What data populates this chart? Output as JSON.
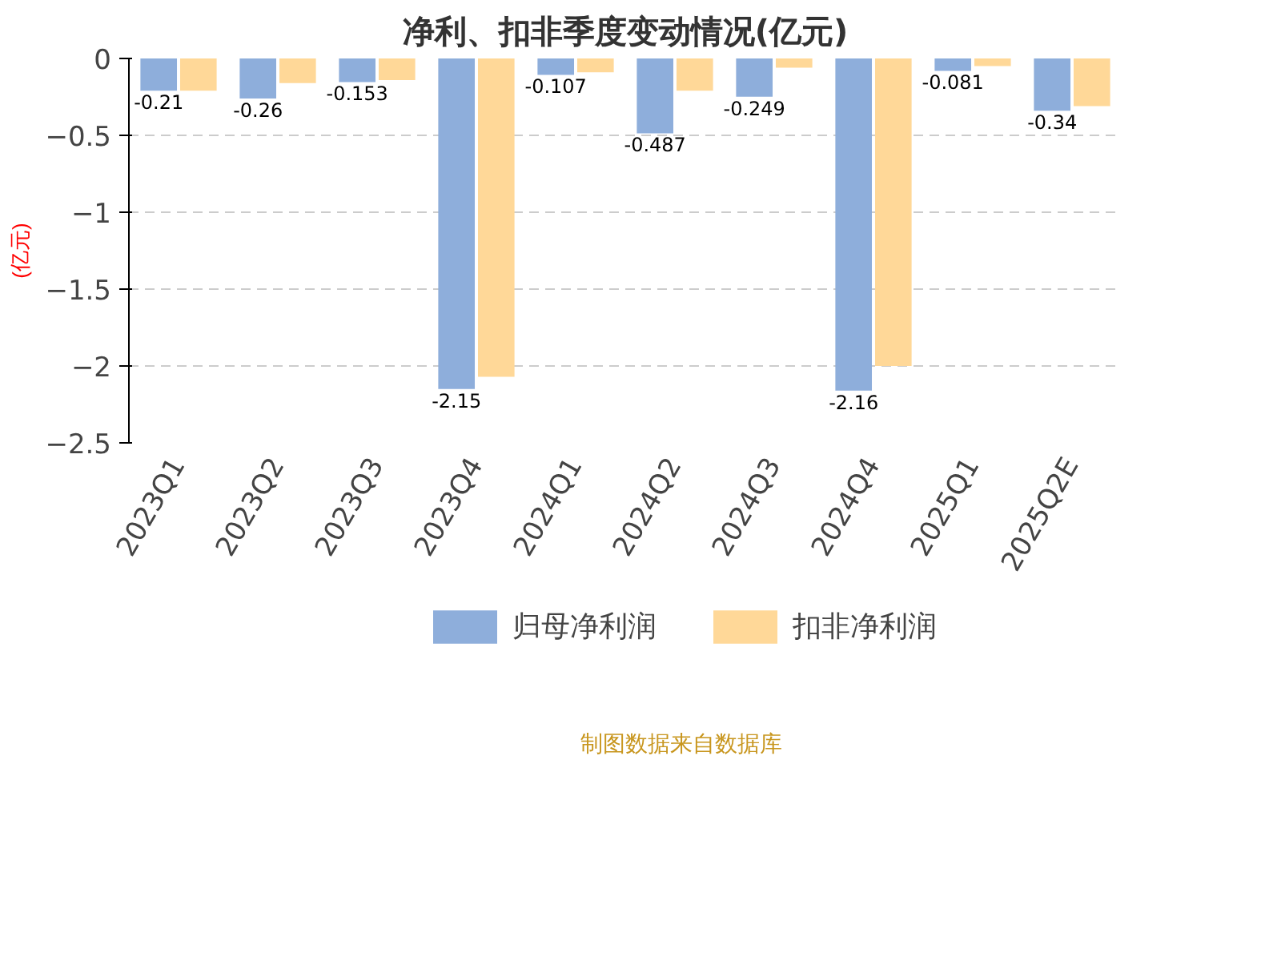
{
  "chart_data": {
    "type": "bar",
    "title": "净利、扣非季度变动情况(亿元)",
    "ylabel": "(亿元)",
    "categories": [
      "2023Q1",
      "2023Q2",
      "2023Q3",
      "2023Q4",
      "2024Q1",
      "2024Q2",
      "2024Q3",
      "2024Q4",
      "2025Q1",
      "2025Q2E"
    ],
    "series": [
      {
        "name": "归母净利润",
        "color": "#8eaedb",
        "values": [
          -0.21,
          -0.26,
          -0.153,
          -2.15,
          -0.107,
          -0.487,
          -0.249,
          -2.16,
          -0.081,
          -0.34
        ],
        "value_labels": [
          "-0.21",
          "-0.26",
          "-0.153",
          "-2.15",
          "-0.107",
          "-0.487",
          "-0.249",
          "-2.16",
          "-0.081",
          "-0.34"
        ]
      },
      {
        "name": "扣非净利润",
        "color": "#ffd898",
        "values": [
          -0.21,
          -0.16,
          -0.14,
          -2.07,
          -0.09,
          -0.21,
          -0.06,
          -2.0,
          -0.05,
          -0.31
        ]
      }
    ],
    "ylim": [
      -2.5,
      0
    ],
    "yticks": [
      0,
      -0.5,
      -1,
      -1.5,
      -2,
      -2.5
    ],
    "grid": "y",
    "legend": "bottom",
    "annotations": [
      "制图数据来自数据库"
    ]
  }
}
